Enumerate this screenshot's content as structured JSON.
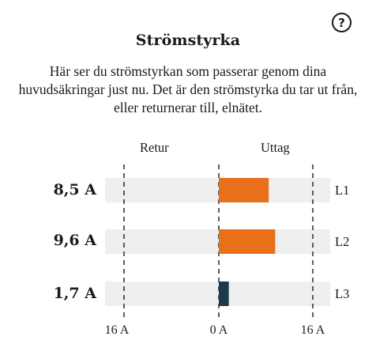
{
  "help": {
    "icon": "question-circle-icon",
    "glyph": "?"
  },
  "title": "Strömstyrka",
  "description": "Här ser du strömstyrkan som passerar genom dina huvudsäkringar just nu. Det är den strömstyrka du tar ut från, eller returnerar till, elnätet.",
  "headers": {
    "return": "Retur",
    "draw": "Uttag"
  },
  "phases": [
    {
      "value_label": "8,5 A",
      "phase": "L1",
      "amperes": 8.5,
      "direction": "draw",
      "color": "#e8701a"
    },
    {
      "value_label": "9,6 A",
      "phase": "L2",
      "amperes": 9.6,
      "direction": "draw",
      "color": "#e8701a"
    },
    {
      "value_label": "1,7 A",
      "phase": "L3",
      "amperes": 1.7,
      "direction": "draw",
      "color": "#1b3a4b"
    }
  ],
  "axis": {
    "left": "16 A",
    "center": "0 A",
    "right": "16 A",
    "max_amperes": 16
  },
  "colors": {
    "track": "#efefef",
    "draw": "#e8701a",
    "low": "#1b3a4b"
  }
}
